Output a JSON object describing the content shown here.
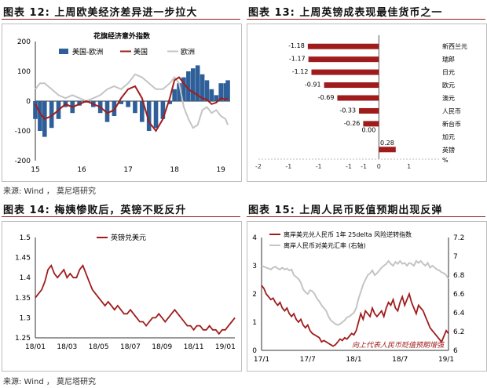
{
  "headers": {
    "fig12": "图表 12: 上周欧美经济差异进一步拉大",
    "fig13": "图表 13: 上周英镑成表现最佳货币之一",
    "fig14": "图表 14: 梅姨惨败后，英镑不贬反升",
    "fig15": "图表 15: 上周人民币贬值预期出现反弹"
  },
  "sources": {
    "top": "来源: Wind ， 莫尼塔研究",
    "bottom": "来源: Wind ， 莫尼塔研究"
  },
  "colors": {
    "red": "#a01c1c",
    "blue": "#2f5f99",
    "gray": "#c4c4c4",
    "rule": "#8c1d1d"
  },
  "chart_data": [
    {
      "id": "fig12",
      "type": "line",
      "title": "花旗经济意外指数",
      "legend": [
        "美国-欧洲",
        "美国",
        "欧洲"
      ],
      "legend_placement": "top",
      "xlim": [
        15,
        19.2
      ],
      "ylim": [
        -200,
        200
      ],
      "xticks": [
        "15",
        "16",
        "17",
        "18",
        "19"
      ],
      "yticks": [
        "200",
        "100",
        "0",
        "-100",
        "-200"
      ],
      "series": [
        {
          "name": "美国-欧洲",
          "style": "area",
          "x": [
            15.0,
            15.1,
            15.2,
            15.35,
            15.5,
            15.65,
            15.8,
            15.95,
            16.1,
            16.25,
            16.4,
            16.55,
            16.7,
            16.85,
            17.0,
            17.15,
            17.3,
            17.45,
            17.6,
            17.75,
            17.9,
            18.0,
            18.1,
            18.2,
            18.3,
            18.4,
            18.5,
            18.6,
            18.7,
            18.8,
            18.9,
            19.0,
            19.1,
            19.15
          ],
          "y": [
            -60,
            -100,
            -120,
            -90,
            -60,
            -20,
            -40,
            -15,
            -5,
            -20,
            -40,
            -70,
            -50,
            -10,
            -20,
            -40,
            -70,
            -100,
            -90,
            -60,
            -10,
            40,
            60,
            80,
            100,
            110,
            120,
            90,
            70,
            40,
            20,
            60,
            60,
            70
          ]
        },
        {
          "name": "美国",
          "x": [
            15.0,
            15.1,
            15.2,
            15.35,
            15.5,
            15.65,
            15.8,
            15.95,
            16.1,
            16.25,
            16.4,
            16.55,
            16.7,
            16.85,
            17.0,
            17.15,
            17.3,
            17.45,
            17.6,
            17.75,
            17.9,
            18.0,
            18.1,
            18.2,
            18.3,
            18.4,
            18.5,
            18.6,
            18.7,
            18.8,
            18.9,
            19.0,
            19.1,
            19.15
          ],
          "y": [
            -10,
            -40,
            -60,
            -50,
            -30,
            -10,
            -20,
            -10,
            0,
            -10,
            -20,
            -40,
            -30,
            10,
            40,
            50,
            10,
            -70,
            -100,
            -60,
            10,
            70,
            80,
            60,
            40,
            30,
            20,
            10,
            5,
            -10,
            -5,
            10,
            5,
            10
          ]
        },
        {
          "name": "欧洲",
          "x": [
            15.0,
            15.1,
            15.2,
            15.35,
            15.5,
            15.65,
            15.8,
            15.95,
            16.1,
            16.25,
            16.4,
            16.55,
            16.7,
            16.85,
            17.0,
            17.15,
            17.3,
            17.45,
            17.6,
            17.75,
            17.9,
            18.0,
            18.1,
            18.2,
            18.3,
            18.4,
            18.5,
            18.6,
            18.7,
            18.8,
            18.9,
            19.0,
            19.1,
            19.15
          ],
          "y": [
            40,
            60,
            60,
            40,
            20,
            10,
            20,
            10,
            0,
            10,
            20,
            40,
            50,
            40,
            60,
            90,
            80,
            60,
            40,
            40,
            60,
            80,
            60,
            -20,
            -60,
            -90,
            -80,
            -30,
            -20,
            -40,
            -30,
            -50,
            -60,
            -80
          ]
        }
      ]
    },
    {
      "id": "fig13",
      "type": "bar",
      "orientation": "horizontal",
      "categories": [
        "新西兰元",
        "瑞郎",
        "日元",
        "欧元",
        "澳元",
        "人民币",
        "新台币",
        "加元",
        "英镑"
      ],
      "values": [
        -1.18,
        -1.17,
        -1.12,
        -0.91,
        -0.69,
        -0.33,
        -0.26,
        0.0,
        0.28
      ],
      "value_labels": [
        "-1.18",
        "-1.17",
        "-1.12",
        "-0.91",
        "-0.69",
        "-0.33",
        "-0.26",
        "0.00",
        "0.28"
      ],
      "xlim": [
        -2,
        1
      ],
      "xticks": [
        "-2",
        "-1",
        "-1",
        "-1",
        "-1",
        "0",
        "1"
      ],
      "xlabel": "%"
    },
    {
      "id": "fig14",
      "type": "line",
      "legend": [
        "英镑兑美元"
      ],
      "legend_placement": "top",
      "ylim": [
        1.25,
        1.5
      ],
      "yticks": [
        "1.5",
        "1.45",
        "1.4",
        "1.35",
        "1.3",
        "1.25"
      ],
      "xticks": [
        "18/01",
        "18/03",
        "18/05",
        "18/07",
        "18/09",
        "18/11",
        "19/01"
      ],
      "series": [
        {
          "name": "英镑兑美元",
          "x": [
            0,
            0.2,
            0.4,
            0.6,
            0.8,
            1.0,
            1.2,
            1.4,
            1.6,
            1.8,
            2.0,
            2.2,
            2.4,
            2.6,
            2.8,
            3.0,
            3.2,
            3.4,
            3.6,
            3.8,
            4.0,
            4.2,
            4.4,
            4.6,
            4.8,
            5.0,
            5.2,
            5.4,
            5.6,
            5.8,
            6.0,
            6.2,
            6.4,
            6.6,
            6.8,
            7.0,
            7.2,
            7.4,
            7.6,
            7.8,
            8.0,
            8.2,
            8.4,
            8.6,
            8.8,
            9.0,
            9.2,
            9.4,
            9.6,
            9.8,
            10.0,
            10.2,
            10.4,
            10.6,
            10.8,
            11.0,
            11.2,
            11.4,
            11.6,
            11.8,
            12.0,
            12.2,
            12.4,
            12.6
          ],
          "y": [
            1.35,
            1.36,
            1.37,
            1.39,
            1.42,
            1.43,
            1.41,
            1.4,
            1.41,
            1.42,
            1.4,
            1.41,
            1.4,
            1.4,
            1.42,
            1.43,
            1.41,
            1.39,
            1.37,
            1.36,
            1.35,
            1.34,
            1.33,
            1.34,
            1.33,
            1.32,
            1.33,
            1.32,
            1.31,
            1.31,
            1.32,
            1.31,
            1.3,
            1.29,
            1.29,
            1.28,
            1.29,
            1.3,
            1.3,
            1.31,
            1.3,
            1.29,
            1.3,
            1.31,
            1.32,
            1.31,
            1.3,
            1.29,
            1.28,
            1.28,
            1.27,
            1.28,
            1.28,
            1.27,
            1.27,
            1.28,
            1.27,
            1.27,
            1.26,
            1.27,
            1.27,
            1.28,
            1.29,
            1.3
          ]
        }
      ]
    },
    {
      "id": "fig15",
      "type": "line",
      "legend": [
        "离岸美元兑人民币 1年 25delta 风险逆转指数",
        "离岸人民币对美元汇率 (右轴)"
      ],
      "legend_placement": "top",
      "ylim": [
        0,
        4
      ],
      "y2lim": [
        6.0,
        7.2
      ],
      "yticks": [
        "4",
        "3",
        "2",
        "1",
        "0"
      ],
      "y2ticks": [
        "7.2",
        "7",
        "6.8",
        "6.6",
        "6.4",
        "6.2",
        "6"
      ],
      "xticks": [
        "17/1",
        "17/7",
        "18/1",
        "18/7",
        "19/1"
      ],
      "annotation": "向上代表人民币贬值预期增强",
      "series": [
        {
          "name": "离岸美元兑人民币 1年 25delta 风险逆转指数",
          "axis": "left",
          "x": [
            0,
            0.3,
            0.6,
            0.9,
            1.2,
            1.5,
            1.8,
            2.1,
            2.4,
            2.7,
            3.0,
            3.3,
            3.6,
            3.9,
            4.2,
            4.5,
            4.8,
            5.1,
            5.4,
            5.7,
            6.0,
            6.3,
            6.6,
            6.9,
            7.2,
            7.5,
            7.8,
            8.1,
            8.4,
            8.7,
            9.0,
            9.3,
            9.6,
            9.9,
            10.2,
            10.5,
            10.8,
            11.1,
            11.4,
            11.7,
            12.0,
            12.3,
            12.6,
            12.9,
            13.2,
            13.5,
            13.8,
            14.1,
            14.4,
            14.7,
            15.0,
            15.3,
            15.6,
            15.9,
            16.2,
            16.5,
            16.8,
            17.1,
            17.4,
            17.7,
            18.0,
            18.3,
            18.6,
            18.9,
            19.2,
            19.5,
            19.8,
            20.1,
            20.4,
            20.7,
            21.0,
            21.3,
            21.6,
            21.9,
            22.2,
            22.5,
            22.8,
            23.1,
            23.4,
            23.7,
            24.0,
            24.3
          ],
          "y": [
            2.3,
            2.2,
            2.0,
            1.9,
            1.8,
            1.85,
            1.7,
            1.6,
            1.7,
            1.5,
            1.4,
            1.5,
            1.3,
            1.2,
            1.3,
            1.1,
            1.0,
            1.1,
            0.9,
            0.8,
            0.9,
            0.7,
            0.6,
            0.55,
            0.5,
            0.45,
            0.3,
            0.35,
            0.3,
            0.25,
            0.2,
            0.15,
            0.2,
            0.3,
            0.4,
            0.35,
            0.45,
            0.4,
            0.5,
            0.6,
            0.55,
            0.7,
            1.0,
            1.3,
            1.1,
            1.4,
            1.3,
            1.2,
            1.5,
            1.3,
            1.2,
            1.3,
            1.4,
            1.2,
            1.5,
            1.7,
            1.6,
            1.8,
            1.5,
            1.4,
            1.7,
            1.9,
            1.6,
            1.8,
            2.0,
            1.7,
            1.5,
            1.3,
            1.6,
            1.5,
            1.4,
            1.2,
            1.0,
            0.8,
            0.7,
            0.6,
            0.5,
            0.4,
            0.3,
            0.5,
            0.7,
            0.6
          ]
        },
        {
          "name": "离岸人民币对美元汇率 (右轴)",
          "axis": "right",
          "x": [
            0,
            0.3,
            0.6,
            0.9,
            1.2,
            1.5,
            1.8,
            2.1,
            2.4,
            2.7,
            3.0,
            3.3,
            3.6,
            3.9,
            4.2,
            4.5,
            4.8,
            5.1,
            5.4,
            5.7,
            6.0,
            6.3,
            6.6,
            6.9,
            7.2,
            7.5,
            7.8,
            8.1,
            8.4,
            8.7,
            9.0,
            9.3,
            9.6,
            9.9,
            10.2,
            10.5,
            10.8,
            11.1,
            11.4,
            11.7,
            12.0,
            12.3,
            12.6,
            12.9,
            13.2,
            13.5,
            13.8,
            14.1,
            14.4,
            14.7,
            15.0,
            15.3,
            15.6,
            15.9,
            16.2,
            16.5,
            16.8,
            17.1,
            17.4,
            17.7,
            18.0,
            18.3,
            18.6,
            18.9,
            19.2,
            19.5,
            19.8,
            20.1,
            20.4,
            20.7,
            21.0,
            21.3,
            21.6,
            21.9,
            22.2,
            22.5,
            22.8,
            23.1,
            23.4,
            23.7,
            24.0,
            24.3
          ],
          "y": [
            6.9,
            6.89,
            6.88,
            6.87,
            6.86,
            6.88,
            6.89,
            6.87,
            6.86,
            6.88,
            6.86,
            6.87,
            6.85,
            6.86,
            6.8,
            6.78,
            6.76,
            6.72,
            6.65,
            6.62,
            6.6,
            6.64,
            6.63,
            6.6,
            6.55,
            6.52,
            6.48,
            6.45,
            6.42,
            6.36,
            6.32,
            6.3,
            6.28,
            6.27,
            6.28,
            6.3,
            6.32,
            6.35,
            6.36,
            6.38,
            6.4,
            6.45,
            6.55,
            6.62,
            6.7,
            6.75,
            6.8,
            6.82,
            6.85,
            6.8,
            6.82,
            6.85,
            6.88,
            6.9,
            6.92,
            6.95,
            6.92,
            6.9,
            6.94,
            6.92,
            6.95,
            6.92,
            6.93,
            6.9,
            6.93,
            6.92,
            6.9,
            6.95,
            6.93,
            6.95,
            6.92,
            6.9,
            6.93,
            6.88,
            6.9,
            6.88,
            6.86,
            6.85,
            6.83,
            6.82,
            6.8,
            6.76
          ]
        }
      ]
    }
  ]
}
